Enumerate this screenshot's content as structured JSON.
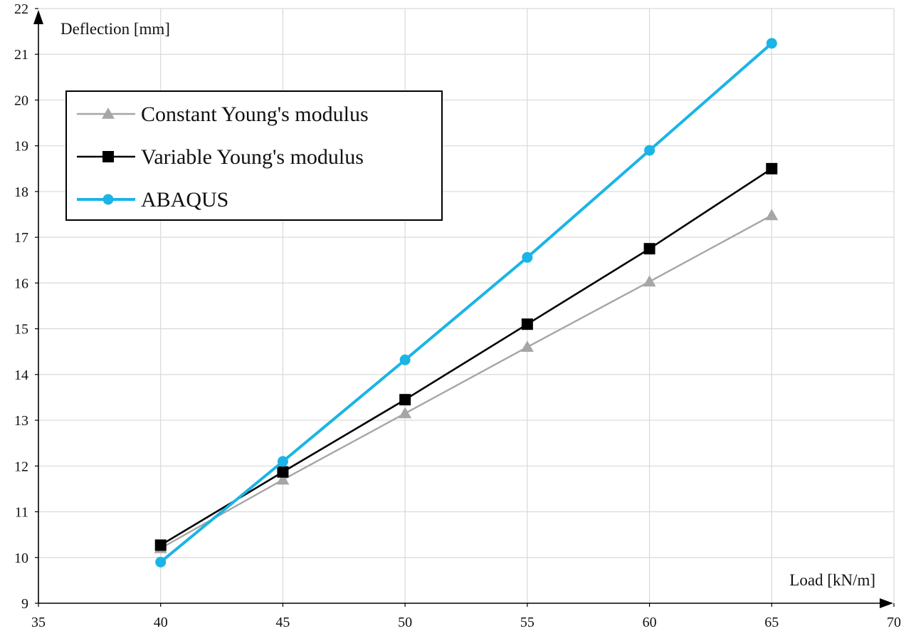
{
  "chart_data": {
    "type": "line",
    "title": "",
    "xlabel": "Load [kN/m]",
    "ylabel": "Deflection  [mm]",
    "xlim": [
      35,
      70
    ],
    "ylim": [
      9,
      22
    ],
    "xticks": [
      35,
      40,
      45,
      50,
      55,
      60,
      65,
      70
    ],
    "yticks": [
      9,
      10,
      11,
      12,
      13,
      14,
      15,
      16,
      17,
      18,
      19,
      20,
      21,
      22
    ],
    "grid": true,
    "legend_position": "top-left",
    "x": [
      40,
      45,
      50,
      55,
      60,
      65
    ],
    "series": [
      {
        "name": "Constant Young's modulus",
        "values": [
          10.2,
          11.7,
          13.15,
          14.6,
          16.03,
          17.48
        ],
        "color": "#a6a6a6",
        "marker": "triangle"
      },
      {
        "name": "Variable Young's modulus",
        "values": [
          10.27,
          11.87,
          13.45,
          15.1,
          16.75,
          18.5
        ],
        "color": "#000000",
        "marker": "square"
      },
      {
        "name": "ABAQUS",
        "values": [
          9.9,
          12.1,
          14.32,
          16.56,
          18.9,
          21.24
        ],
        "color": "#1ab4e6",
        "marker": "circle"
      }
    ]
  }
}
